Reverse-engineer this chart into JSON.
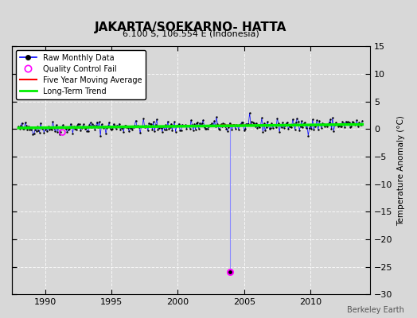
{
  "title": "JAKARTA/SOEKARNO- HATTA",
  "subtitle": "6.100 S, 106.554 E (Indonesia)",
  "ylabel": "Temperature Anomaly (°C)",
  "credit": "Berkeley Earth",
  "xlim": [
    1987.5,
    2014.5
  ],
  "ylim": [
    -30,
    15
  ],
  "yticks": [
    -30,
    -25,
    -20,
    -15,
    -10,
    -5,
    0,
    5,
    10,
    15
  ],
  "xticks": [
    1990,
    1995,
    2000,
    2005,
    2010
  ],
  "background_color": "#d8d8d8",
  "plot_bg_color": "#d8d8d8",
  "raw_line_color": "#0000ff",
  "raw_marker_color": "#000000",
  "qc_fail_color": "#ff00ff",
  "qc_fail_line_color": "#8888ff",
  "moving_avg_color": "#ff0000",
  "trend_color": "#00ee00",
  "qc_fail_x": 2003.917,
  "qc_fail_y": -26.0,
  "qc_fail2_x": 1991.25,
  "qc_fail2_y": -0.5,
  "seed": 42,
  "noise_std": 0.6,
  "trend_slope": 0.025,
  "trend_base": 0.2
}
